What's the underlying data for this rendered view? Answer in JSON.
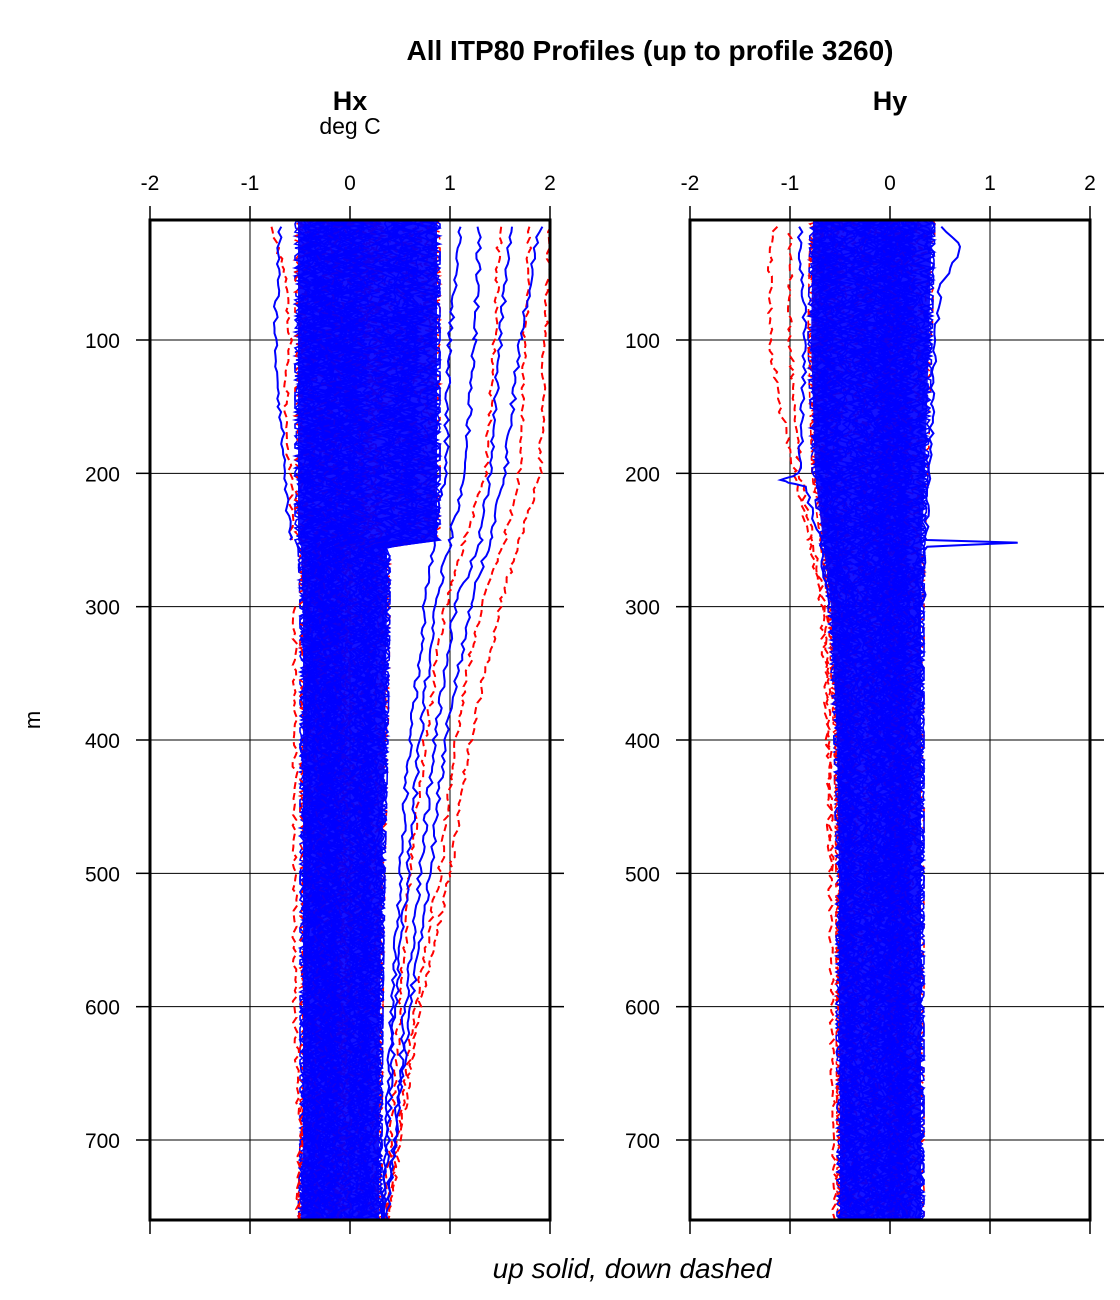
{
  "chart_data": {
    "type": "line",
    "title": "All ITP80 Profiles (up to profile 3260)",
    "footer_label": "up solid, down dashed",
    "ylabel": "m",
    "ylim": [
      760,
      10
    ],
    "y_ticks": [
      100,
      200,
      300,
      400,
      500,
      600,
      700
    ],
    "x_ticks": [
      -2,
      -1,
      0,
      1,
      2
    ],
    "grid": true,
    "colors": {
      "up": "#0000ff",
      "down": "#ff0000",
      "axis": "#000000",
      "grid": "#000000"
    },
    "line_styles": {
      "up": "solid",
      "down": "dashed"
    },
    "panels": [
      {
        "title": "Hx",
        "units": "deg C",
        "xlim": [
          -2,
          2
        ],
        "bulk_envelope": {
          "depth": [
            10,
            100,
            150,
            200,
            250,
            255,
            300,
            400,
            500,
            600,
            700,
            760
          ],
          "min": [
            -0.55,
            -0.55,
            -0.55,
            -0.55,
            -0.55,
            -0.52,
            -0.5,
            -0.5,
            -0.5,
            -0.5,
            -0.5,
            -0.52
          ],
          "max": [
            0.9,
            0.9,
            0.9,
            0.9,
            0.9,
            0.4,
            0.4,
            0.38,
            0.35,
            0.33,
            0.32,
            0.32
          ]
        },
        "up_profiles": [
          {
            "depth": [
              15,
              100,
              200,
              250,
              300,
              400,
              500,
              600,
              700,
              760
            ],
            "value": [
              1.9,
              1.7,
              1.55,
              1.4,
              1.2,
              0.95,
              0.8,
              0.6,
              0.45,
              0.38
            ]
          },
          {
            "depth": [
              15,
              100,
              200,
              250,
              300,
              400,
              500,
              600,
              700,
              760
            ],
            "value": [
              1.6,
              1.5,
              1.4,
              1.3,
              1.05,
              0.85,
              0.7,
              0.55,
              0.45,
              0.35
            ]
          },
          {
            "depth": [
              15,
              100,
              200,
              250,
              300,
              400,
              500,
              600,
              700,
              760
            ],
            "value": [
              1.3,
              1.25,
              1.15,
              1.0,
              0.85,
              0.7,
              0.58,
              0.45,
              0.38,
              0.33
            ]
          },
          {
            "depth": [
              15,
              100,
              200,
              250,
              300,
              400,
              500,
              600,
              700,
              760
            ],
            "value": [
              1.1,
              1.0,
              0.95,
              0.85,
              0.75,
              0.6,
              0.5,
              0.42,
              0.36,
              0.32
            ]
          },
          {
            "depth": [
              15,
              100,
              150,
              200,
              250
            ],
            "value": [
              -0.7,
              -0.75,
              -0.7,
              -0.65,
              -0.6
            ]
          }
        ],
        "down_profiles": [
          {
            "depth": [
              15,
              100,
              200,
              250,
              300,
              400,
              500,
              600,
              700,
              760
            ],
            "value": [
              2.0,
              1.95,
              1.9,
              1.7,
              1.5,
              1.2,
              1.0,
              0.7,
              0.5,
              0.38
            ]
          },
          {
            "depth": [
              15,
              100,
              200,
              250,
              300,
              400,
              500,
              600,
              700,
              760
            ],
            "value": [
              1.8,
              1.75,
              1.7,
              1.55,
              1.3,
              1.05,
              0.9,
              0.65,
              0.48,
              0.36
            ]
          },
          {
            "depth": [
              15,
              100,
              200,
              250,
              300,
              400,
              500,
              600,
              700,
              760
            ],
            "value": [
              1.5,
              1.45,
              1.35,
              1.15,
              0.95,
              0.75,
              0.6,
              0.5,
              0.4,
              0.34
            ]
          },
          {
            "depth": [
              15,
              50,
              100,
              150,
              200,
              250
            ],
            "value": [
              -0.8,
              -0.65,
              -0.6,
              -0.65,
              -0.6,
              -0.58
            ]
          },
          {
            "depth": [
              300,
              400,
              500,
              600,
              700,
              760
            ],
            "value": [
              -0.55,
              -0.55,
              -0.55,
              -0.55,
              -0.5,
              -0.52
            ]
          }
        ]
      },
      {
        "title": "Hy",
        "units": "",
        "xlim": [
          -2,
          2
        ],
        "bulk_envelope": {
          "depth": [
            10,
            100,
            200,
            250,
            300,
            400,
            500,
            600,
            700,
            760
          ],
          "min": [
            -0.8,
            -0.82,
            -0.78,
            -0.7,
            -0.62,
            -0.56,
            -0.54,
            -0.54,
            -0.53,
            -0.53
          ],
          "max": [
            0.45,
            0.42,
            0.38,
            0.35,
            0.34,
            0.34,
            0.34,
            0.34,
            0.34,
            0.34
          ]
        },
        "up_profiles": [
          {
            "depth": [
              15,
              30,
              60,
              100,
              150,
              200,
              250,
              252,
              255,
              300
            ],
            "value": [
              0.5,
              0.72,
              0.5,
              0.45,
              0.42,
              0.4,
              0.35,
              1.3,
              0.35,
              0.33
            ]
          },
          {
            "depth": [
              15,
              100,
              200,
              205,
              210,
              250,
              300
            ],
            "value": [
              -0.9,
              -0.85,
              -0.9,
              -1.1,
              -0.85,
              -0.7,
              -0.62
            ]
          }
        ],
        "down_profiles": [
          {
            "depth": [
              15,
              40,
              100,
              150,
              200,
              250,
              300,
              400,
              500,
              600,
              700,
              760
            ],
            "value": [
              -1.15,
              -1.2,
              -1.2,
              -1.1,
              -0.95,
              -0.8,
              -0.68,
              -0.62,
              -0.6,
              -0.58,
              -0.56,
              -0.55
            ]
          },
          {
            "depth": [
              20,
              100,
              200,
              300,
              400,
              500
            ],
            "value": [
              -1.0,
              -1.0,
              -0.9,
              -0.65,
              -0.6,
              -0.58
            ]
          }
        ]
      }
    ]
  }
}
